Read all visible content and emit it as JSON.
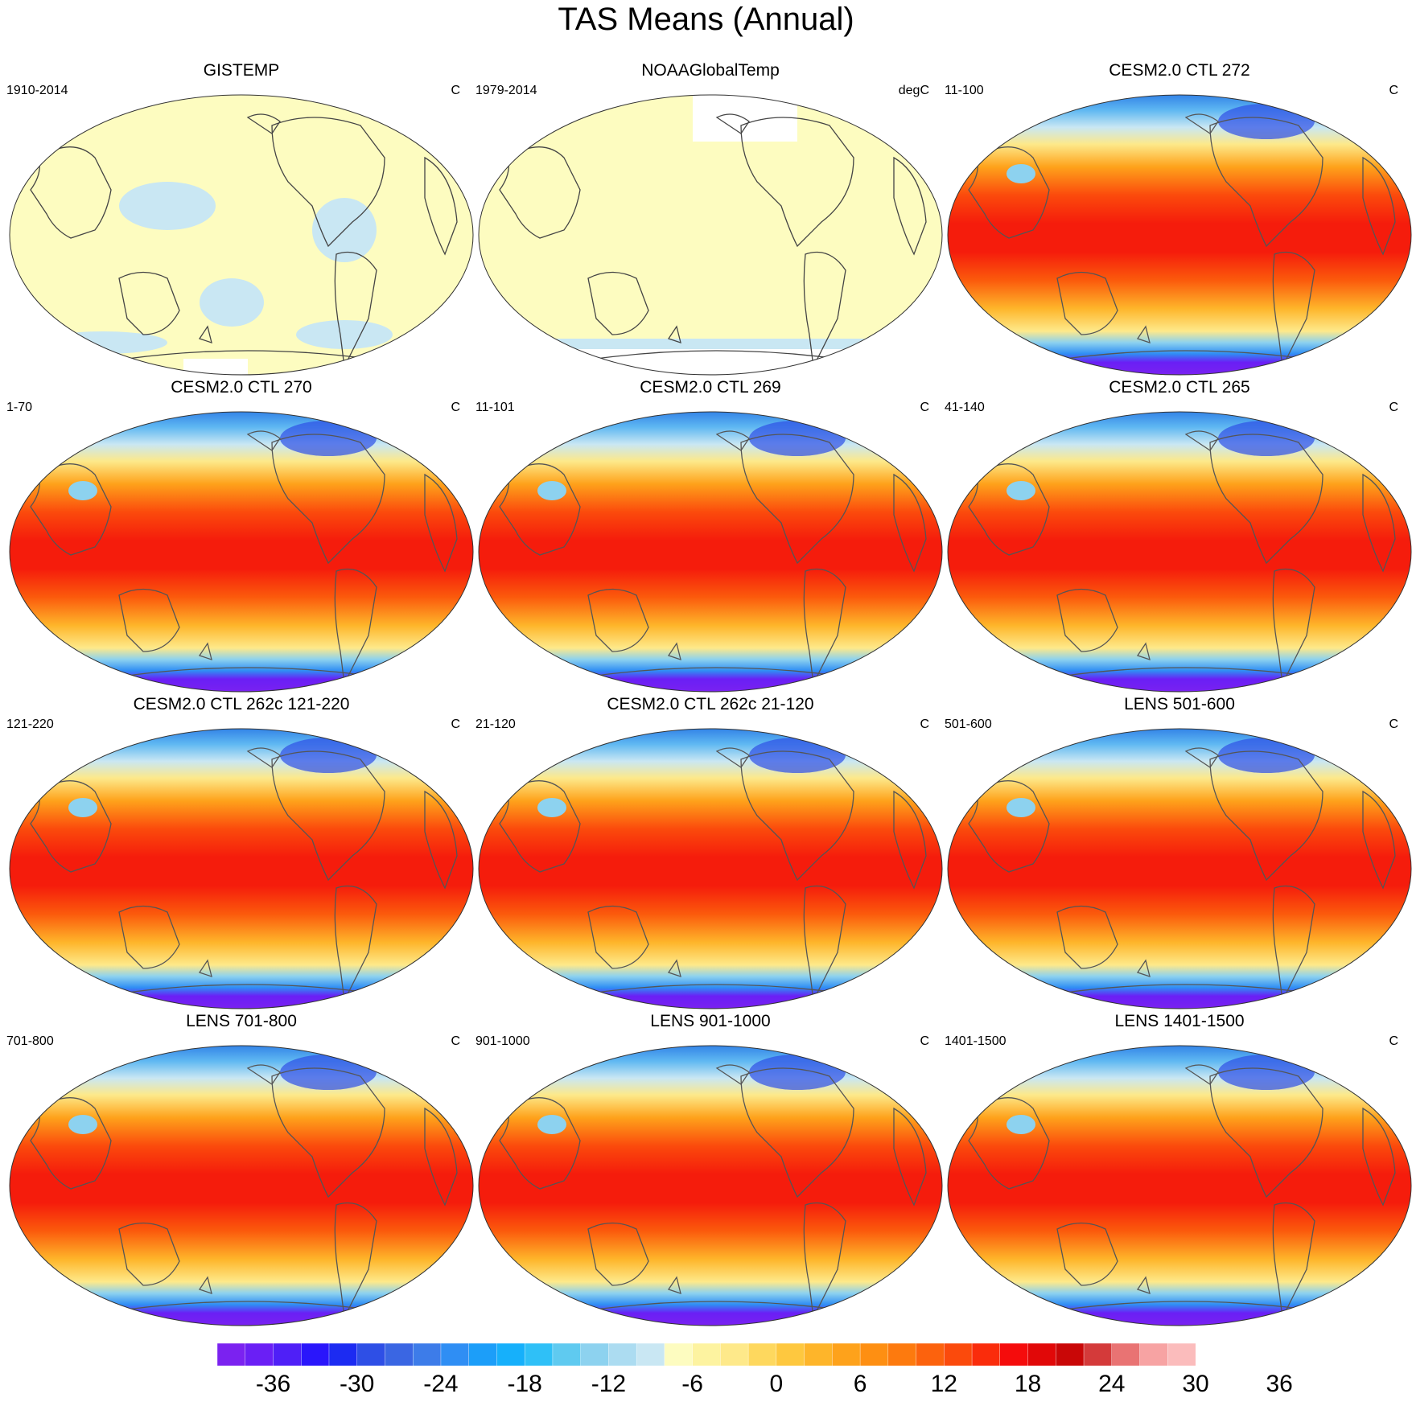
{
  "figure": {
    "title": "TAS Means (Annual)"
  },
  "panels": [
    {
      "title": "GISTEMP",
      "left": "1910-2014",
      "right": "C",
      "style": "obs1"
    },
    {
      "title": "NOAAGlobalTemp",
      "left": "1979-2014",
      "right": "degC",
      "style": "obs2"
    },
    {
      "title": "CESM2.0 CTL 272",
      "left": "11-100",
      "right": "C",
      "style": "model"
    },
    {
      "title": "CESM2.0 CTL 270",
      "left": "1-70",
      "right": "C",
      "style": "model"
    },
    {
      "title": "CESM2.0 CTL 269",
      "left": "11-101",
      "right": "C",
      "style": "model"
    },
    {
      "title": "CESM2.0 CTL 265",
      "left": "41-140",
      "right": "C",
      "style": "model"
    },
    {
      "title": "CESM2.0 CTL 262c 121-220",
      "left": "121-220",
      "right": "C",
      "style": "model"
    },
    {
      "title": "CESM2.0 CTL 262c 21-120",
      "left": "21-120",
      "right": "C",
      "style": "model"
    },
    {
      "title": "LENS 501-600",
      "left": "501-600",
      "right": "C",
      "style": "model"
    },
    {
      "title": "LENS 701-800",
      "left": "701-800",
      "right": "C",
      "style": "model"
    },
    {
      "title": "LENS 901-1000",
      "left": "901-1000",
      "right": "C",
      "style": "model"
    },
    {
      "title": "LENS 1401-1500",
      "left": "1401-1500",
      "right": "C",
      "style": "model"
    }
  ],
  "colorbar": {
    "labels": [
      "-36",
      "-30",
      "-24",
      "-18",
      "-12",
      "-6",
      "0",
      "6",
      "12",
      "18",
      "24",
      "30",
      "36"
    ],
    "colors": [
      "#7b22f0",
      "#6a1ff5",
      "#4f1ff7",
      "#2a16fb",
      "#1c2bf2",
      "#2e4fe6",
      "#3a66e3",
      "#3d7ce9",
      "#2f8ef4",
      "#1c9ef9",
      "#16b0fb",
      "#2fc0f7",
      "#5fcaf0",
      "#8dd2ef",
      "#acdcf1",
      "#c9e7f3",
      "#fdfcc0",
      "#fdf3a0",
      "#fee98a",
      "#fed85e",
      "#fec83f",
      "#feb52a",
      "#fea21b",
      "#fe8f12",
      "#fd7a0e",
      "#fc620d",
      "#fb4a0c",
      "#fa2c0b",
      "#f50c0c",
      "#e10808",
      "#c90707",
      "#d43a3a",
      "#e97373",
      "#f7a3a3",
      "#fbbcbc"
    ]
  }
}
